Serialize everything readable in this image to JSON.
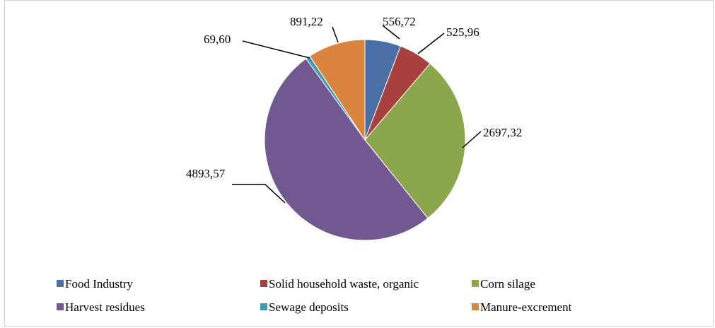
{
  "chart_data": {
    "type": "pie",
    "categories": [
      "Food Industry",
      "Solid household waste, organic",
      "Corn silage",
      "Harvest residues",
      "Sewage deposits",
      "Manure-excrement"
    ],
    "values": [
      556.72,
      525.96,
      2697.32,
      4893.57,
      69.6,
      891.22
    ],
    "value_labels": [
      "556,72",
      "525,96",
      "2697,32",
      "4893,57",
      "69,60",
      "891,22"
    ],
    "colors": [
      "#4A6FA5",
      "#A8413E",
      "#8CA74B",
      "#715891",
      "#3E9BB4",
      "#DB843D"
    ],
    "legend_position": "bottom"
  }
}
